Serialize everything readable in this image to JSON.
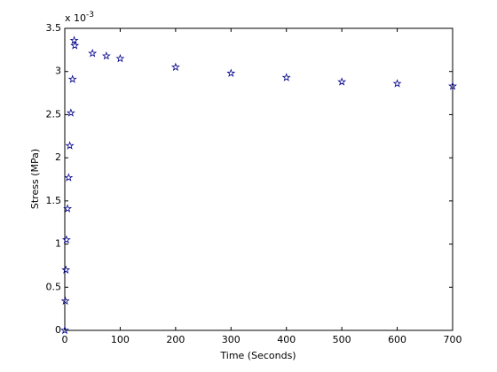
{
  "chart_data": {
    "type": "scatter",
    "x_label": "Time (Seconds)",
    "y_label": "Stress (MPa)",
    "y_multiplier": {
      "base": "x 10",
      "exponent": "-3"
    },
    "marker": "star",
    "grid": false,
    "series": [
      {
        "color": "#00008b",
        "x": [
          0,
          1,
          2,
          3,
          5,
          7,
          9,
          11,
          14,
          17,
          18,
          50,
          75,
          100,
          200,
          300,
          400,
          500,
          600,
          700
        ],
        "values": [
          0,
          0.34,
          0.7,
          1.05,
          1.41,
          1.77,
          2.14,
          2.52,
          2.91,
          3.36,
          3.3,
          3.21,
          3.18,
          3.15,
          3.05,
          2.98,
          2.93,
          2.88,
          2.86,
          2.83
        ]
      }
    ],
    "xlim": [
      0,
      700
    ],
    "xticks": [
      0,
      100,
      200,
      300,
      400,
      500,
      600,
      700
    ],
    "ylim": [
      0,
      3.5
    ],
    "yticks": [
      0,
      0.5,
      1,
      1.5,
      2,
      2.5,
      3,
      3.5
    ]
  }
}
